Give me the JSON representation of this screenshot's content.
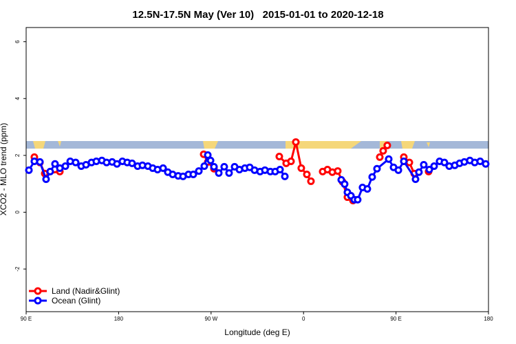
{
  "chart_data": {
    "type": "line",
    "title": "12.5N-17.5N May (Ver 10)   2015-01-01 to 2020-12-18",
    "x_label": "Longitude (deg E)",
    "y_label": "XCO2 - MLO trend (ppm)",
    "xlim": [
      90,
      540
    ],
    "xticks": [
      {
        "value": 90,
        "label": "90 E"
      },
      {
        "value": 180,
        "label": "180"
      },
      {
        "value": 270,
        "label": "90 W"
      },
      {
        "value": 360,
        "label": "0"
      },
      {
        "value": 450,
        "label": "90 E"
      },
      {
        "value": 540,
        "label": "180"
      }
    ],
    "ylim": [
      -3.5,
      6.5
    ],
    "yticks": [
      -2,
      0,
      2,
      4,
      6
    ],
    "legend": "bottom-left",
    "series": [
      {
        "name": "Land (Nadir&Glint)",
        "color": "#ff0000",
        "x": [
          98.0,
          103.4,
          108.1,
          122.8,
          null,
          262.8,
          266.8,
          272.8,
          null,
          336.4,
          343.1,
          347.8,
          352.5,
          357.8,
          363.2,
          367.2,
          null,
          378.6,
          383.3,
          388.0,
          393.3,
          398.0,
          402.7,
          408.1,
          null,
          434.2,
          437.5,
          441.5,
          null,
          457.6,
          463.0,
          467.7,
          null,
          481.7
        ],
        "values": [
          1.94,
          1.75,
          1.36,
          1.43,
          null,
          2.04,
          1.77,
          1.53,
          null,
          1.96,
          1.72,
          1.79,
          2.47,
          1.55,
          1.33,
          1.09,
          null,
          1.43,
          1.5,
          1.41,
          1.45,
          1.07,
          0.53,
          0.41,
          null,
          1.94,
          2.16,
          2.35,
          null,
          1.94,
          1.75,
          1.36,
          null,
          1.43
        ]
      },
      {
        "name": "Ocean (Glint)",
        "color": "#0000ff",
        "x": [
          92.7,
          98.0,
          103.4,
          109.4,
          113.4,
          118.1,
          122.8,
          128.2,
          132.9,
          138.2,
          143.6,
          148.3,
          153.6,
          158.3,
          163.7,
          168.3,
          173.7,
          178.4,
          183.7,
          188.4,
          193.1,
          198.5,
          203.2,
          208.5,
          213.2,
          217.9,
          223.3,
          227.9,
          232.6,
          238.0,
          242.7,
          248.0,
          252.7,
          258.1,
          263.4,
          266.8,
          269.5,
          272.8,
          277.5,
          282.8,
          287.5,
          292.9,
          297.6,
          302.9,
          307.6,
          312.3,
          317.7,
          322.4,
          327.7,
          332.4,
          337.1,
          341.8,
          null,
          396.7,
          400.0,
          402.7,
          406.1,
          409.4,
          412.7,
          417.4,
          422.1,
          426.8,
          431.5,
          442.9,
          447.6,
          452.3,
          457.6,
          469.0,
          472.3,
          477.0,
          482.4,
          487.1,
          492.4,
          497.1,
          501.8,
          507.2,
          511.9,
          516.5,
          521.9,
          526.6,
          531.9,
          537.3
        ],
        "values": [
          1.48,
          1.79,
          1.77,
          1.16,
          1.43,
          1.7,
          1.55,
          1.62,
          1.79,
          1.75,
          1.62,
          1.67,
          1.75,
          1.79,
          1.82,
          1.75,
          1.77,
          1.7,
          1.79,
          1.75,
          1.72,
          1.62,
          1.65,
          1.62,
          1.55,
          1.5,
          1.55,
          1.41,
          1.33,
          1.28,
          1.26,
          1.33,
          1.33,
          1.45,
          1.62,
          2.01,
          1.82,
          1.6,
          1.38,
          1.6,
          1.38,
          1.6,
          1.5,
          1.55,
          1.58,
          1.48,
          1.43,
          1.48,
          1.43,
          1.43,
          1.5,
          1.26,
          null,
          1.14,
          0.99,
          0.7,
          0.58,
          0.44,
          0.44,
          0.87,
          0.82,
          1.24,
          1.53,
          1.87,
          1.58,
          1.48,
          1.79,
          1.16,
          1.41,
          1.67,
          1.5,
          1.62,
          1.79,
          1.75,
          1.62,
          1.65,
          1.72,
          1.77,
          1.82,
          1.75,
          1.79,
          1.7
        ]
      }
    ]
  }
}
